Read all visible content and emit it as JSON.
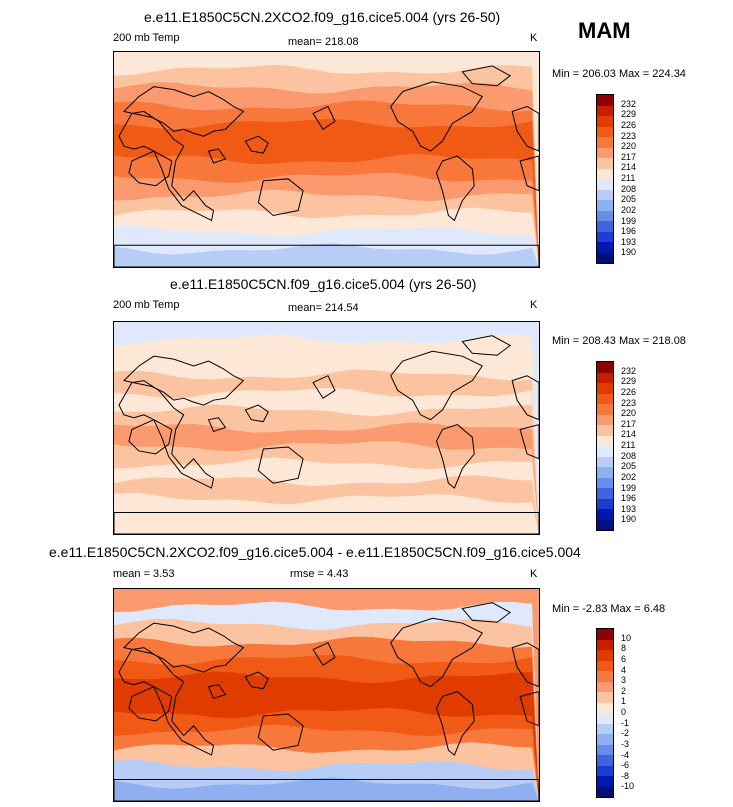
{
  "season": "MAM",
  "panels": [
    {
      "title": "e.e11.E1850C5CN.2XCO2.f09_g16.cice5.004 (yrs 26-50)",
      "left_label": "200 mb Temp",
      "center_label": "mean= 218.08",
      "units": "K",
      "minmax": "Min = 206.03 Max = 224.34",
      "legend_labels": [
        "232",
        "229",
        "226",
        "223",
        "220",
        "217",
        "214",
        "211",
        "208",
        "205",
        "202",
        "199",
        "196",
        "193",
        "190"
      ],
      "legend_colors": [
        "#8f0000",
        "#c81e00",
        "#e03c00",
        "#f05a14",
        "#f8783c",
        "#fa9a6e",
        "#fbc3a0",
        "#fde8d8",
        "#dfe9fb",
        "#b7cdf6",
        "#8eaff0",
        "#668de9",
        "#3e65df",
        "#1b3dd0",
        "#0018b0",
        "#00107a"
      ],
      "bands": [
        "#fde8d8",
        "#fbc3a0",
        "#fa9a6e",
        "#f8783c",
        "#f05a14",
        "#f05a14",
        "#f8783c",
        "#fa9a6e",
        "#fbc3a0",
        "#fde8d8",
        "#dfe9fb",
        "#b7cdf6"
      ]
    },
    {
      "title": "e.e11.E1850C5CN.f09_g16.cice5.004 (yrs 26-50)",
      "left_label": "200 mb Temp",
      "center_label": "mean= 214.54",
      "units": "K",
      "minmax": "Min = 208.43 Max = 218.08",
      "legend_labels": [
        "232",
        "229",
        "226",
        "223",
        "220",
        "217",
        "214",
        "211",
        "208",
        "205",
        "202",
        "199",
        "196",
        "193",
        "190"
      ],
      "legend_colors": [
        "#8f0000",
        "#c81e00",
        "#e03c00",
        "#f05a14",
        "#f8783c",
        "#fa9a6e",
        "#fbc3a0",
        "#fde8d8",
        "#dfe9fb",
        "#b7cdf6",
        "#8eaff0",
        "#668de9",
        "#3e65df",
        "#1b3dd0",
        "#0018b0",
        "#00107a"
      ],
      "bands": [
        "#dfe9fb",
        "#fde8d8",
        "#fde8d8",
        "#fbc3a0",
        "#fde8d8",
        "#fbc3a0",
        "#fa9a6e",
        "#fbc3a0",
        "#fde8d8",
        "#fbc3a0",
        "#fde8d8",
        "#fde8d8"
      ]
    },
    {
      "title": "e.e11.E1850C5CN.2XCO2.f09_g16.cice5.004 - e.e11.E1850C5CN.f09_g16.cice5.004",
      "left_label": "mean =   3.53",
      "center_label": "rmse =   4.43",
      "units": "K",
      "minmax": "Min =  -2.83 Max =   6.48",
      "legend_labels": [
        "10",
        "8",
        "6",
        "4",
        "3",
        "2",
        "1",
        "0",
        "-1",
        "-2",
        "-3",
        "-4",
        "-6",
        "-8",
        "-10"
      ],
      "legend_colors": [
        "#8f0000",
        "#c81e00",
        "#e03c00",
        "#f05a14",
        "#f8783c",
        "#fa9a6e",
        "#fbc3a0",
        "#fde8d8",
        "#dfe9fb",
        "#b7cdf6",
        "#8eaff0",
        "#668de9",
        "#3e65df",
        "#1b3dd0",
        "#0018b0",
        "#00107a"
      ],
      "bands": [
        "#fa9a6e",
        "#dfe9fb",
        "#fbc3a0",
        "#f8783c",
        "#f05a14",
        "#e03c00",
        "#e03c00",
        "#f05a14",
        "#f8783c",
        "#fbc3a0",
        "#b7cdf6",
        "#8eaff0"
      ]
    }
  ]
}
